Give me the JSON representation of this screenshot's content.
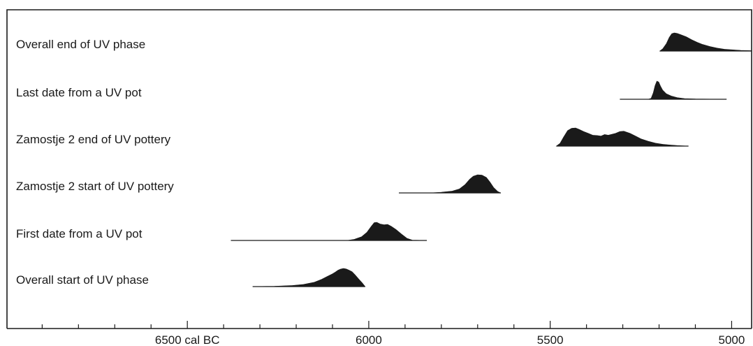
{
  "chart_data": {
    "type": "area",
    "title": "",
    "xlabel": "",
    "ylabel": "",
    "x_unit": "cal BC",
    "xlim": [
      6997,
      4945
    ],
    "x_direction": "decreasing",
    "major_ticks": [
      6500,
      6000,
      5500,
      5000
    ],
    "tick_labels": [
      "6500 cal BC",
      "6000",
      "5500",
      "5000"
    ],
    "minor_ticks": [
      6900,
      6800,
      6700,
      6600,
      6400,
      6300,
      6200,
      6100,
      5900,
      5800,
      5700,
      5600,
      5400,
      5300,
      5200,
      5100
    ],
    "grid": false,
    "legend": "none",
    "series": [
      {
        "name": "Overall end of UV phase",
        "range": [
          5198,
          4945
        ],
        "points": [
          [
            5198,
            0
          ],
          [
            5190,
            0.12
          ],
          [
            5180,
            0.4
          ],
          [
            5172,
            0.75
          ],
          [
            5165,
            0.95
          ],
          [
            5158,
            1.0
          ],
          [
            5150,
            0.97
          ],
          [
            5140,
            0.9
          ],
          [
            5125,
            0.78
          ],
          [
            5110,
            0.62
          ],
          [
            5095,
            0.48
          ],
          [
            5080,
            0.36
          ],
          [
            5060,
            0.25
          ],
          [
            5040,
            0.16
          ],
          [
            5020,
            0.1
          ],
          [
            5000,
            0.07
          ],
          [
            4975,
            0.04
          ],
          [
            4945,
            0.02
          ]
        ]
      },
      {
        "name": "Last date from a UV pot",
        "range": [
          5308,
          5014
        ],
        "points": [
          [
            5308,
            0
          ],
          [
            5230,
            0
          ],
          [
            5222,
            0.05
          ],
          [
            5216,
            0.35
          ],
          [
            5211,
            0.75
          ],
          [
            5206,
            1.0
          ],
          [
            5201,
            0.95
          ],
          [
            5196,
            0.72
          ],
          [
            5190,
            0.5
          ],
          [
            5180,
            0.3
          ],
          [
            5165,
            0.17
          ],
          [
            5150,
            0.09
          ],
          [
            5130,
            0.04
          ],
          [
            5100,
            0.015
          ],
          [
            5014,
            0
          ]
        ]
      },
      {
        "name": "Zamostje 2 end of UV pottery",
        "range": [
          5483,
          5119
        ],
        "points": [
          [
            5483,
            0
          ],
          [
            5473,
            0.15
          ],
          [
            5463,
            0.5
          ],
          [
            5452,
            0.85
          ],
          [
            5441,
            0.98
          ],
          [
            5430,
            1.0
          ],
          [
            5420,
            0.92
          ],
          [
            5408,
            0.8
          ],
          [
            5395,
            0.7
          ],
          [
            5383,
            0.6
          ],
          [
            5370,
            0.58
          ],
          [
            5360,
            0.55
          ],
          [
            5350,
            0.64
          ],
          [
            5340,
            0.6
          ],
          [
            5320,
            0.7
          ],
          [
            5308,
            0.8
          ],
          [
            5297,
            0.82
          ],
          [
            5280,
            0.7
          ],
          [
            5265,
            0.55
          ],
          [
            5250,
            0.4
          ],
          [
            5230,
            0.27
          ],
          [
            5210,
            0.16
          ],
          [
            5190,
            0.1
          ],
          [
            5170,
            0.06
          ],
          [
            5150,
            0.03
          ],
          [
            5119,
            0
          ]
        ]
      },
      {
        "name": "Zamostje 2 start of UV pottery",
        "range": [
          5917,
          5636
        ],
        "points": [
          [
            5917,
            0
          ],
          [
            5830,
            0
          ],
          [
            5800,
            0.04
          ],
          [
            5770,
            0.1
          ],
          [
            5750,
            0.22
          ],
          [
            5735,
            0.45
          ],
          [
            5722,
            0.75
          ],
          [
            5712,
            0.92
          ],
          [
            5700,
            1.0
          ],
          [
            5688,
            0.98
          ],
          [
            5676,
            0.85
          ],
          [
            5666,
            0.6
          ],
          [
            5656,
            0.3
          ],
          [
            5645,
            0.08
          ],
          [
            5636,
            0
          ]
        ]
      },
      {
        "name": "First date from a UV pot",
        "range": [
          6380,
          5840
        ],
        "points": [
          [
            6380,
            0
          ],
          [
            6060,
            0
          ],
          [
            6040,
            0.06
          ],
          [
            6020,
            0.2
          ],
          [
            6005,
            0.45
          ],
          [
            5993,
            0.78
          ],
          [
            5985,
            0.98
          ],
          [
            5978,
            1.0
          ],
          [
            5968,
            0.9
          ],
          [
            5958,
            0.86
          ],
          [
            5948,
            0.88
          ],
          [
            5938,
            0.78
          ],
          [
            5925,
            0.6
          ],
          [
            5910,
            0.35
          ],
          [
            5895,
            0.12
          ],
          [
            5880,
            0.02
          ],
          [
            5840,
            0
          ]
        ]
      },
      {
        "name": "Overall start of UV phase",
        "range": [
          6320,
          6010
        ],
        "points": [
          [
            6320,
            0
          ],
          [
            6260,
            0.02
          ],
          [
            6210,
            0.06
          ],
          [
            6180,
            0.12
          ],
          [
            6150,
            0.24
          ],
          [
            6130,
            0.4
          ],
          [
            6115,
            0.55
          ],
          [
            6100,
            0.7
          ],
          [
            6092,
            0.8
          ],
          [
            6085,
            0.9
          ],
          [
            6078,
            0.96
          ],
          [
            6070,
            1.0
          ],
          [
            6062,
            0.97
          ],
          [
            6054,
            0.9
          ],
          [
            6046,
            0.82
          ],
          [
            6038,
            0.65
          ],
          [
            6028,
            0.42
          ],
          [
            6018,
            0.2
          ],
          [
            6010,
            0
          ]
        ]
      }
    ]
  }
}
